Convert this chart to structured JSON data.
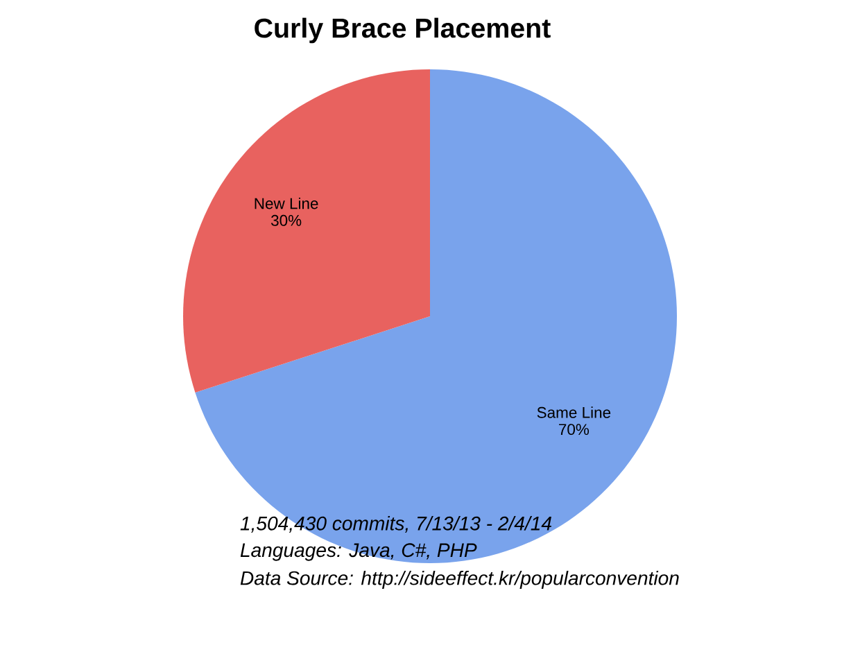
{
  "chart_data": {
    "type": "pie",
    "title": "Curly Brace Placement",
    "categories": [
      "Same Line",
      "New Line"
    ],
    "values": [
      70,
      30
    ],
    "value_labels": [
      "70%",
      "30%"
    ],
    "colors": [
      "#79a3ec",
      "#e8625f"
    ],
    "annotations": [
      "1,504,430 commits, 7/13/13 - 2/4/14",
      "Languages: Java, C#, PHP",
      "Data Source: http://sideeffect.kr/popularconvention"
    ]
  }
}
